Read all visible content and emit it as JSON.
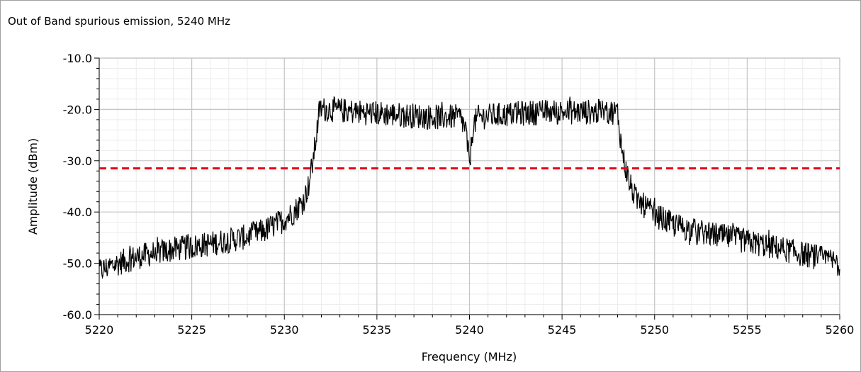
{
  "chart_data": {
    "type": "line",
    "title": "Out of Band spurious emission, 5240 MHz",
    "xlabel": "Frequency (MHz)",
    "ylabel": "Amplitude (dBm)",
    "xlim": [
      5220,
      5260
    ],
    "ylim": [
      -60,
      -10
    ],
    "x_ticks": [
      5220,
      5225,
      5230,
      5235,
      5240,
      5245,
      5250,
      5255,
      5260
    ],
    "x_tick_labels": [
      "5220",
      "5225",
      "5230",
      "5235",
      "5240",
      "5245",
      "5250",
      "5255",
      "5260"
    ],
    "y_ticks": [
      -60,
      -50,
      -40,
      -30,
      -20,
      -10
    ],
    "y_tick_labels": [
      "-60.0",
      "-50.0",
      "-40.0",
      "-30.0",
      "-20.0",
      "-10.0"
    ],
    "grid": true,
    "limit_line": {
      "y": -31.5,
      "color": "#e8001c",
      "style": "dashed"
    },
    "series": [
      {
        "color": "#000000",
        "points": [
          [
            5220.0,
            -51.5
          ],
          [
            5221.0,
            -50.0
          ],
          [
            5222.0,
            -48.8
          ],
          [
            5223.0,
            -48.0
          ],
          [
            5224.0,
            -47.3
          ],
          [
            5225.0,
            -46.8
          ],
          [
            5226.0,
            -46.2
          ],
          [
            5227.0,
            -45.5
          ],
          [
            5228.0,
            -44.8
          ],
          [
            5229.0,
            -43.5
          ],
          [
            5230.0,
            -41.5
          ],
          [
            5230.5,
            -40.0
          ],
          [
            5231.0,
            -38.0
          ],
          [
            5231.3,
            -35.0
          ],
          [
            5231.5,
            -31.0
          ],
          [
            5231.7,
            -26.0
          ],
          [
            5231.9,
            -20.0
          ],
          [
            5232.5,
            -20.0
          ],
          [
            5234.0,
            -20.5
          ],
          [
            5236.0,
            -21.0
          ],
          [
            5238.0,
            -21.5
          ],
          [
            5239.5,
            -21.5
          ],
          [
            5239.8,
            -24.0
          ],
          [
            5240.0,
            -31.0
          ],
          [
            5240.2,
            -23.0
          ],
          [
            5240.5,
            -21.5
          ],
          [
            5242.0,
            -21.0
          ],
          [
            5244.0,
            -20.5
          ],
          [
            5246.0,
            -20.5
          ],
          [
            5248.0,
            -20.5
          ],
          [
            5248.2,
            -27.0
          ],
          [
            5248.4,
            -31.0
          ],
          [
            5248.7,
            -35.0
          ],
          [
            5249.0,
            -37.5
          ],
          [
            5250.0,
            -40.5
          ],
          [
            5251.0,
            -42.5
          ],
          [
            5252.0,
            -43.5
          ],
          [
            5253.0,
            -44.3
          ],
          [
            5254.0,
            -45.0
          ],
          [
            5255.0,
            -45.8
          ],
          [
            5256.0,
            -46.5
          ],
          [
            5257.0,
            -47.3
          ],
          [
            5258.0,
            -48.2
          ],
          [
            5259.0,
            -49.0
          ],
          [
            5260.0,
            -50.0
          ]
        ],
        "noise_amplitude_db": 2.5
      }
    ]
  }
}
